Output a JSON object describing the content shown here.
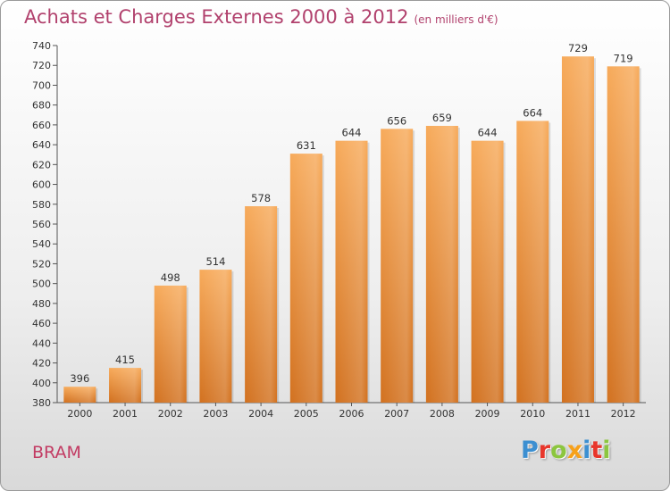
{
  "header": {
    "title": "Achats et Charges Externes 2000 à 2012",
    "unit": "(en milliers d'€)"
  },
  "footer": {
    "commune": "BRAM",
    "logo": [
      "P",
      "r",
      "o",
      "x",
      "i",
      "t",
      "i"
    ]
  },
  "colors": {
    "title": "#b1416d",
    "bar_top": "#f7aa5a",
    "bar_bottom": "#d2711f",
    "logo": [
      "#3c8fd1",
      "#e8362b",
      "#8cc63f",
      "#f7a11a",
      "#3c8fd1",
      "#e8362b",
      "#8cc63f"
    ]
  },
  "chart_data": {
    "type": "bar",
    "title": "Achats et Charges Externes 2000 à 2012",
    "ylabel": "en milliers d'€",
    "xlabel": "",
    "categories": [
      "2000",
      "2001",
      "2002",
      "2003",
      "2004",
      "2005",
      "2006",
      "2007",
      "2008",
      "2009",
      "2010",
      "2011",
      "2012"
    ],
    "values": [
      396,
      415,
      498,
      514,
      578,
      631,
      644,
      656,
      659,
      644,
      664,
      729,
      719
    ],
    "ylim": [
      380,
      740
    ],
    "yticks": [
      380,
      400,
      420,
      440,
      460,
      480,
      500,
      520,
      540,
      560,
      580,
      600,
      620,
      640,
      660,
      680,
      700,
      720,
      740
    ],
    "grid": false,
    "legend": "none"
  }
}
